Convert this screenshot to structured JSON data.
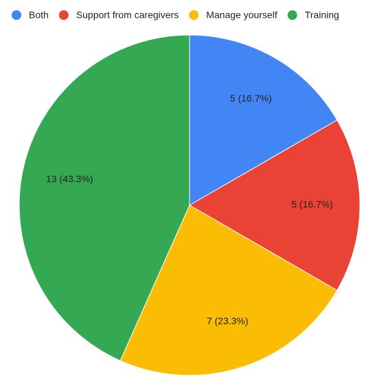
{
  "chart_data": {
    "type": "pie",
    "categories": [
      "Both",
      "Support from caregivers",
      "Manage yourself",
      "Training"
    ],
    "values": [
      5,
      5,
      7,
      13
    ],
    "value_labels": [
      "5 (16.7%)",
      "5 (16.7%)",
      "7 (23.3%)",
      "13 (43.3%)"
    ],
    "colors": [
      "#4285f4",
      "#ea4335",
      "#fbbc04",
      "#34a853"
    ],
    "legend": "top"
  }
}
